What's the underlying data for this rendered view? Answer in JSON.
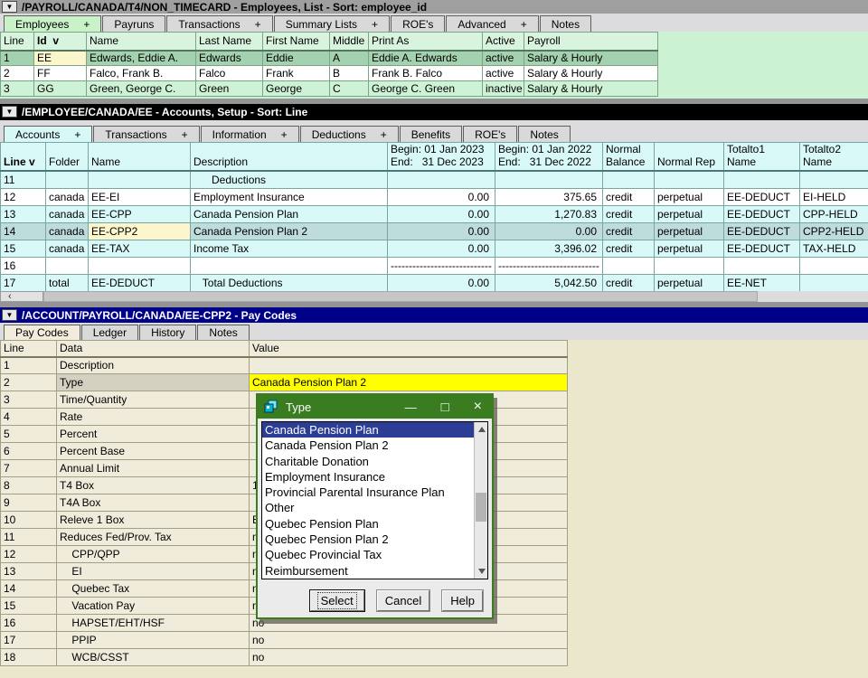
{
  "icons": {
    "dropdown": "▼",
    "scroll_left": "‹",
    "minimize": "—",
    "maximize": "□",
    "close": "×"
  },
  "colors": {
    "panel1_accent": "#c9f2c9",
    "panel2_accent": "#d8f8f8",
    "panel3_accent": "#f1ecdc",
    "cursor_cell": "#fcf6cc",
    "cursor_cell_bright": "#ffff00",
    "selection_navy": "#2b3d94",
    "dialog_green": "#3a7d20",
    "title2_bg": "#000000",
    "title3_bg": "#000089"
  },
  "panel1": {
    "title": "/PAYROLL/CANADA/T4/NON_TIMECARD - Employees, List - Sort: employee_id",
    "tabs": [
      {
        "label": "Employees",
        "plus": true,
        "active": true
      },
      {
        "label": "Payruns",
        "plus": false,
        "active": false
      },
      {
        "label": "Transactions",
        "plus": true,
        "active": false
      },
      {
        "label": "Summary Lists",
        "plus": true,
        "active": false
      },
      {
        "label": "ROE's",
        "plus": false,
        "active": false
      },
      {
        "label": "Advanced",
        "plus": true,
        "active": false
      },
      {
        "label": "Notes",
        "plus": false,
        "active": false
      }
    ],
    "table": {
      "columns": [
        "Line",
        "Id  v",
        "Name",
        "Last Name",
        "First Name",
        "Middle",
        "Print As",
        "Active",
        "Payroll"
      ],
      "rows": [
        [
          "1",
          "EE",
          "Edwards, Eddie A.",
          "Edwards",
          "Eddie",
          "A",
          "Eddie A. Edwards",
          "active",
          "Salary & Hourly"
        ],
        [
          "2",
          "FF",
          "Falco, Frank B.",
          "Falco",
          "Frank",
          "B",
          "Frank B. Falco",
          "active",
          "Salary & Hourly"
        ],
        [
          "3",
          "GG",
          "Green, George C.",
          "Green",
          "George",
          "C",
          "George C. Green",
          "inactive",
          "Salary & Hourly"
        ]
      ],
      "selected_row_index": 0,
      "cursor_cell": [
        0,
        1
      ]
    }
  },
  "panel2": {
    "title": "/EMPLOYEE/CANADA/EE - Accounts, Setup - Sort: Line",
    "tabs": [
      {
        "label": "Accounts",
        "plus": true,
        "active": true
      },
      {
        "label": "Transactions",
        "plus": true,
        "active": false
      },
      {
        "label": "Information",
        "plus": true,
        "active": false
      },
      {
        "label": "Deductions",
        "plus": true,
        "active": false
      },
      {
        "label": "Benefits",
        "plus": false,
        "active": false
      },
      {
        "label": "ROE's",
        "plus": false,
        "active": false
      },
      {
        "label": "Notes",
        "plus": false,
        "active": false
      }
    ],
    "table": {
      "columns": [
        "Line v",
        "Folder",
        "Name",
        "Description",
        "Begin: 01 Jan 2023\nEnd:   31 Dec 2023",
        "Begin: 01 Jan 2022\nEnd:   31 Dec 2022",
        "Normal\nBalance",
        "Normal Rep",
        "Totalto1\nName",
        "Totalto2\nName"
      ],
      "rows": [
        [
          "11",
          "",
          "",
          "      Deductions",
          "",
          "",
          "",
          "",
          "",
          ""
        ],
        [
          "12",
          "canada",
          "EE-EI",
          "Employment Insurance",
          "0.00",
          "375.65",
          "credit",
          "perpetual",
          "EE-DEDUCT",
          "EI-HELD"
        ],
        [
          "13",
          "canada",
          "EE-CPP",
          "Canada Pension Plan",
          "0.00",
          "1,270.83",
          "credit",
          "perpetual",
          "EE-DEDUCT",
          "CPP-HELD"
        ],
        [
          "14",
          "canada",
          "EE-CPP2",
          "Canada Pension Plan 2",
          "0.00",
          "0.00",
          "credit",
          "perpetual",
          "EE-DEDUCT",
          "CPP2-HELD"
        ],
        [
          "15",
          "canada",
          "EE-TAX",
          "Income Tax",
          "0.00",
          "3,396.02",
          "credit",
          "perpetual",
          "EE-DEDUCT",
          "TAX-HELD"
        ],
        [
          "16",
          "",
          "",
          "",
          "----------------------------",
          "----------------------------",
          "",
          "",
          "",
          ""
        ],
        [
          "17",
          "total",
          "EE-DEDUCT",
          "   Total Deductions",
          "0.00",
          "5,042.50",
          "credit",
          "perpetual",
          "EE-NET",
          ""
        ]
      ],
      "selected_row_index": 3,
      "cursor_cell": [
        3,
        2
      ]
    }
  },
  "panel3": {
    "title": "/ACCOUNT/PAYROLL/CANADA/EE-CPP2 - Pay Codes",
    "tabs": [
      {
        "label": "Pay Codes",
        "plus": false,
        "active": true
      },
      {
        "label": "Ledger",
        "plus": false,
        "active": false
      },
      {
        "label": "History",
        "plus": false,
        "active": false
      },
      {
        "label": "Notes",
        "plus": false,
        "active": false
      }
    ],
    "table": {
      "columns": [
        "Line",
        "Data",
        "Value"
      ],
      "rows": [
        [
          "1",
          "Description",
          ""
        ],
        [
          "2",
          "Type",
          "Canada Pension Plan 2"
        ],
        [
          "3",
          "Time/Quantity",
          ""
        ],
        [
          "4",
          "Rate",
          ""
        ],
        [
          "5",
          "Percent",
          ""
        ],
        [
          "6",
          "Percent Base",
          ""
        ],
        [
          "7",
          "Annual Limit",
          ""
        ],
        [
          "8",
          "T4 Box",
          "1"
        ],
        [
          "9",
          "T4A Box",
          ""
        ],
        [
          "10",
          "Releve 1 Box",
          "E"
        ],
        [
          "11",
          "Reduces Fed/Prov. Tax",
          "n"
        ],
        [
          "12",
          "    CPP/QPP",
          "n"
        ],
        [
          "13",
          "    EI",
          "n"
        ],
        [
          "14",
          "    Quebec Tax",
          "n"
        ],
        [
          "15",
          "    Vacation Pay",
          "n"
        ],
        [
          "16",
          "    HAPSET/EHT/HSF",
          "no"
        ],
        [
          "17",
          "    PPIP",
          "no"
        ],
        [
          "18",
          "    WCB/CSST",
          "no"
        ]
      ],
      "selected_row_index": 1,
      "cursor_cell": [
        1,
        2
      ]
    }
  },
  "dialog": {
    "title": "Type",
    "items": [
      "Canada Pension Plan",
      "Canada Pension Plan 2",
      "Charitable Donation",
      "Employment Insurance",
      "Provincial Parental Insurance Plan",
      "Other",
      "Quebec Pension Plan",
      "Quebec Pension Plan 2",
      "Quebec Provincial Tax",
      "Reimbursement"
    ],
    "selected_index": 0,
    "buttons": {
      "select": "Select",
      "cancel": "Cancel",
      "help": "Help"
    }
  }
}
